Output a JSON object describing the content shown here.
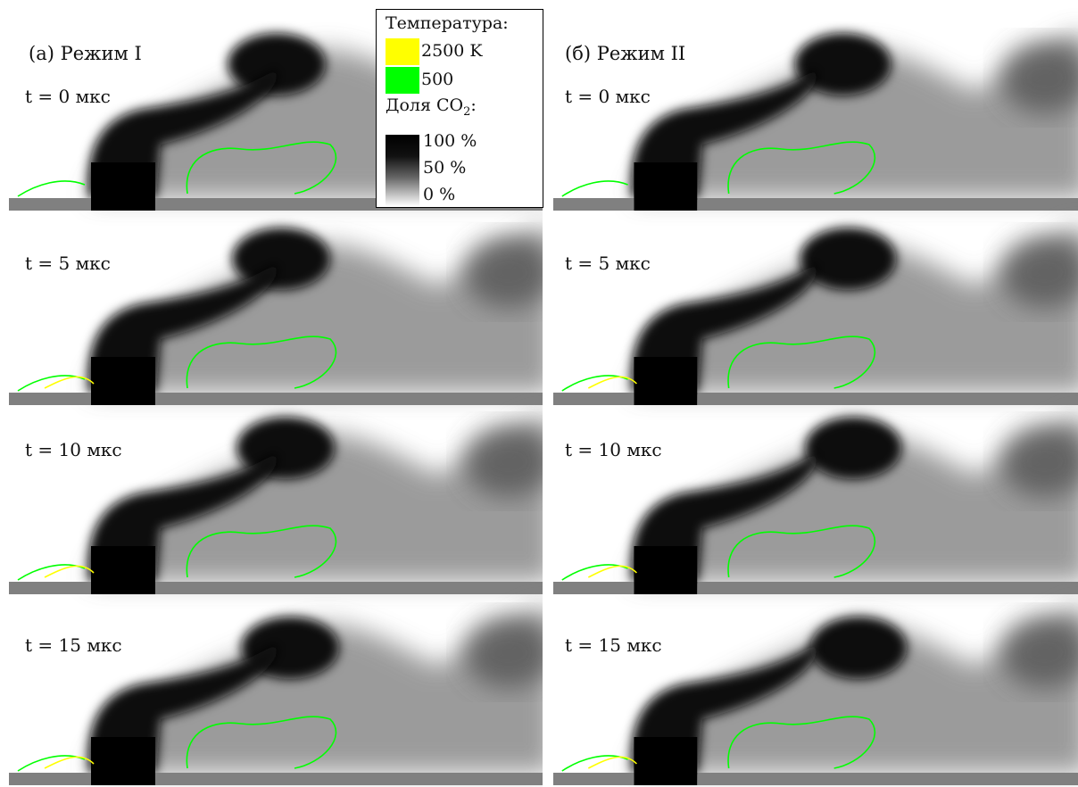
{
  "columns": [
    {
      "title": "(а) Режим I"
    },
    {
      "title": "(б) Режим II"
    }
  ],
  "time_labels": [
    "t = 0 мкс",
    "t = 5 мкс",
    "t = 10 мкс",
    "t = 15 мкс"
  ],
  "legend": {
    "temperature_title": "Температура:",
    "temp_high": "2500 K",
    "temp_low": "500",
    "co2_title": "Доля CO",
    "co2_sub": "2",
    "co2_suffix": ":",
    "co2_100": "100 %",
    "co2_50": "50 %",
    "co2_0": "0 %",
    "colors": {
      "high": "#ffff00",
      "low": "#00ff00"
    }
  }
}
